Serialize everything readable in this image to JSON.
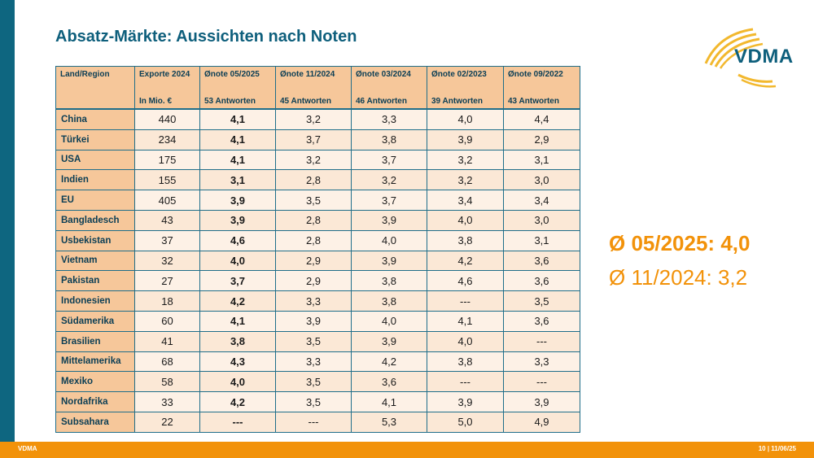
{
  "title": "Absatz-Märkte: Aussichten nach Noten",
  "logo": {
    "text": "VDMA"
  },
  "table": {
    "header_row1": [
      "Land/Region",
      "Exporte 2024",
      "Ønote 05/2025",
      "Ønote 11/2024",
      "Ønote 03/2024",
      "Ønote 02/2023",
      "Ønote 09/2022"
    ],
    "header_row2": [
      "",
      "In Mio. €",
      "53 Antworten",
      "45 Antworten",
      "46 Antworten",
      "39 Antworten",
      "43 Antworten"
    ],
    "rows": [
      [
        "China",
        "440",
        "4,1",
        "3,2",
        "3,3",
        "4,0",
        "4,4"
      ],
      [
        "Türkei",
        "234",
        "4,1",
        "3,7",
        "3,8",
        "3,9",
        "2,9"
      ],
      [
        "USA",
        "175",
        "4,1",
        "3,2",
        "3,7",
        "3,2",
        "3,1"
      ],
      [
        "Indien",
        "155",
        "3,1",
        "2,8",
        "3,2",
        "3,2",
        "3,0"
      ],
      [
        "EU",
        "405",
        "3,9",
        "3,5",
        "3,7",
        "3,4",
        "3,4"
      ],
      [
        "Bangladesch",
        "43",
        "3,9",
        "2,8",
        "3,9",
        "4,0",
        "3,0"
      ],
      [
        "Usbekistan",
        "37",
        "4,6",
        "2,8",
        "4,0",
        "3,8",
        "3,1"
      ],
      [
        "Vietnam",
        "32",
        "4,0",
        "2,9",
        "3,9",
        "4,2",
        "3,6"
      ],
      [
        "Pakistan",
        "27",
        "3,7",
        "2,9",
        "3,8",
        "4,6",
        "3,6"
      ],
      [
        "Indonesien",
        "18",
        "4,2",
        "3,3",
        "3,8",
        "---",
        "3,5"
      ],
      [
        "Südamerika",
        "60",
        "4,1",
        "3,9",
        "4,0",
        "4,1",
        "3,6"
      ],
      [
        "Brasilien",
        "41",
        "3,8",
        "3,5",
        "3,9",
        "4,0",
        "---"
      ],
      [
        "Mittelamerika",
        "68",
        "4,3",
        "3,3",
        "4,2",
        "3,8",
        "3,3"
      ],
      [
        "Mexiko",
        "58",
        "4,0",
        "3,5",
        "3,6",
        "---",
        "---"
      ],
      [
        "Nordafrika",
        "33",
        "4,2",
        "3,5",
        "4,1",
        "3,9",
        "3,9"
      ],
      [
        "Subsahara",
        "22",
        "---",
        "---",
        "5,3",
        "5,0",
        "4,9"
      ]
    ]
  },
  "summary": {
    "current": "Ø 05/2025: 4,0",
    "previous": "Ø 11/2024: 3,2"
  },
  "footer": {
    "left": "VDMA",
    "right": "10 | 11/06/25"
  },
  "colors": {
    "brand_blue": "#0e5f7c",
    "accent_orange": "#f2920a",
    "header_fill": "#f6c79a"
  }
}
